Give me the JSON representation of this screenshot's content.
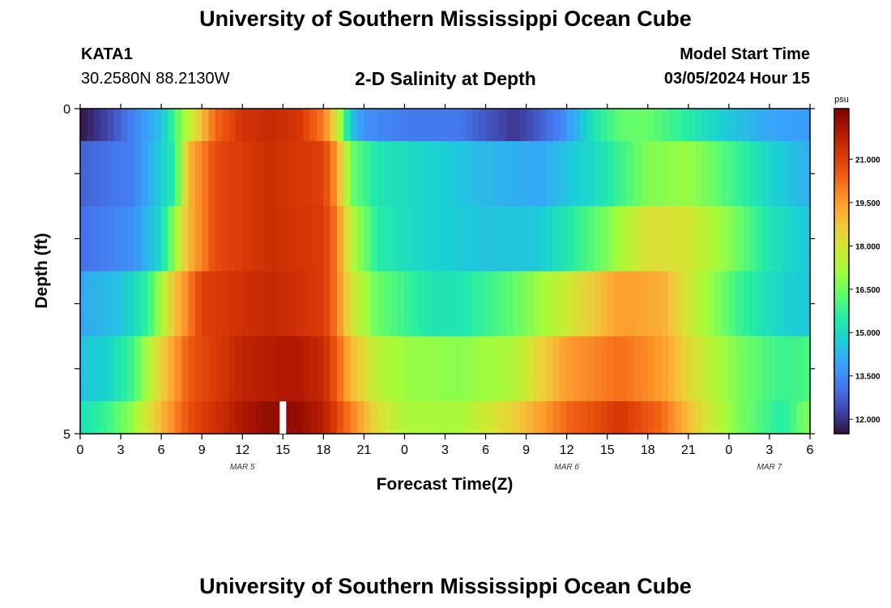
{
  "header": {
    "title": "University of Southern Mississippi Ocean Cube",
    "station": "KATA1",
    "coords": "30.2580N  88.2130W",
    "subtitle": "2-D Salinity at Depth",
    "model_start_label": "Model Start Time",
    "model_start_value": "03/05/2024 Hour 15"
  },
  "footer": {
    "title": "University of Southern Mississippi Ocean Cube"
  },
  "chart_data": {
    "type": "heatmap",
    "title": "2-D Salinity at Depth",
    "xlabel": "Forecast Time(Z)",
    "ylabel": "Depth (ft)",
    "x_tick_labels": [
      "0",
      "3",
      "6",
      "9",
      "12",
      "15",
      "18",
      "21",
      "0",
      "3",
      "6",
      "9",
      "12",
      "15",
      "18",
      "21",
      "0",
      "3",
      "6"
    ],
    "y_tick_labels": [
      "0",
      "5"
    ],
    "date_labels": [
      {
        "label": "MAR 5",
        "at_hour": 12
      },
      {
        "label": "MAR 6",
        "at_hour": 36
      },
      {
        "label": "MAR 7",
        "at_hour": 51
      }
    ],
    "x_range_hours": [
      0,
      54
    ],
    "y_range_ft": [
      0,
      5
    ],
    "colorbar": {
      "unit": "psu",
      "range": [
        11.5,
        22.75
      ],
      "tick_labels": [
        "12.000",
        "13.500",
        "15.000",
        "16.500",
        "18.000",
        "19.500",
        "21.000"
      ],
      "tick_values": [
        12.0,
        13.5,
        15.0,
        16.5,
        18.0,
        19.5,
        21.0
      ],
      "colors": [
        "#30123b",
        "#4145ab",
        "#4675ed",
        "#39a2fc",
        "#1bcfd4",
        "#24eca6",
        "#61fc6c",
        "#a4fc3b",
        "#d1e834",
        "#f3c63a",
        "#fe9b2d",
        "#f36315",
        "#d93806",
        "#b11901",
        "#7a0403"
      ]
    },
    "depth_layers": [
      {
        "depth_range_ft": [
          0,
          0.5
        ],
        "hours": [
          0,
          2,
          4,
          6,
          8,
          10,
          12,
          14,
          16,
          18,
          19,
          20,
          21,
          24,
          28,
          30,
          32,
          33,
          36,
          38,
          40,
          42,
          45,
          48,
          51,
          54
        ],
        "salinity": [
          11.6,
          12.3,
          13.4,
          14.5,
          17.5,
          20.3,
          21.3,
          21.5,
          21.3,
          20.0,
          18.0,
          14.6,
          13.6,
          13.2,
          13.2,
          12.6,
          12.1,
          12.3,
          13.6,
          15.3,
          16.3,
          16.4,
          15.5,
          14.6,
          14.0,
          13.8
        ]
      },
      {
        "depth_range_ft": [
          0.5,
          1.5
        ],
        "hours": [
          0,
          4,
          7,
          8,
          10,
          14,
          18,
          19,
          20,
          22,
          26,
          30,
          34,
          38,
          42,
          45,
          48,
          51,
          54
        ],
        "salinity": [
          12.8,
          13.3,
          15.5,
          19.0,
          20.8,
          21.4,
          21.0,
          19.5,
          16.5,
          15.3,
          14.8,
          14.3,
          14.0,
          15.0,
          16.7,
          17.0,
          16.0,
          14.9,
          14.1
        ]
      },
      {
        "depth_range_ft": [
          1.5,
          2.5
        ],
        "hours": [
          0,
          4,
          6,
          8,
          10,
          14,
          18,
          19,
          20,
          22,
          26,
          30,
          34,
          38,
          42,
          45,
          48,
          51,
          54
        ],
        "salinity": [
          13.0,
          13.6,
          15.0,
          19.0,
          20.8,
          21.4,
          21.1,
          20.0,
          17.5,
          15.5,
          14.8,
          14.5,
          14.6,
          16.2,
          18.2,
          18.0,
          16.8,
          15.3,
          14.5
        ]
      },
      {
        "depth_range_ft": [
          2.5,
          3.5
        ],
        "hours": [
          0,
          3,
          5,
          7,
          9,
          14,
          18,
          19,
          20,
          22,
          26,
          28,
          32,
          36,
          40,
          43,
          46,
          49,
          52,
          54
        ],
        "salinity": [
          14.0,
          14.5,
          15.7,
          18.8,
          21.0,
          21.6,
          21.1,
          20.0,
          18.0,
          16.4,
          15.3,
          15.3,
          16.3,
          17.8,
          19.5,
          19.2,
          17.3,
          15.7,
          14.8,
          14.6
        ]
      },
      {
        "depth_range_ft": [
          3.5,
          4.5
        ],
        "hours": [
          0,
          2,
          4,
          6,
          8,
          12,
          16,
          18,
          19,
          20,
          22,
          24,
          28,
          32,
          36,
          40,
          43,
          46,
          49,
          52,
          54
        ],
        "salinity": [
          14.5,
          14.8,
          16.0,
          18.5,
          20.5,
          21.7,
          22.0,
          21.5,
          20.5,
          19.0,
          17.5,
          17.0,
          16.8,
          17.3,
          19.5,
          20.2,
          19.5,
          17.8,
          16.5,
          15.8,
          16.0
        ]
      },
      {
        "depth_range_ft": [
          4.5,
          5
        ],
        "hours": [
          0,
          2,
          4,
          6,
          8,
          12,
          14,
          16,
          18,
          20,
          22,
          24,
          28,
          32,
          36,
          40,
          43,
          46,
          49,
          52,
          54
        ],
        "salinity": [
          15.2,
          15.8,
          17.0,
          19.0,
          20.7,
          22.0,
          22.4,
          22.4,
          21.8,
          20.0,
          18.2,
          17.3,
          17.2,
          18.5,
          20.3,
          21.2,
          20.3,
          18.2,
          16.5,
          15.5,
          16.8
        ]
      }
    ],
    "grid": false,
    "legend": "colorbar-right"
  }
}
